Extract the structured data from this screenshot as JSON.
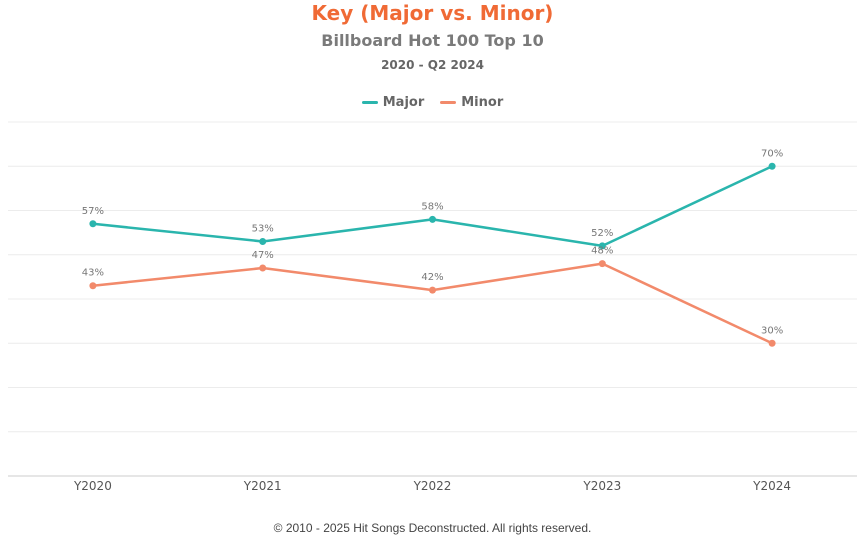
{
  "chart_data": {
    "type": "line",
    "title": "Key (Major vs. Minor)",
    "subtitle": "Billboard Hot 100 Top 10",
    "subtitle2": "2020 - Q2 2024",
    "categories": [
      "Y2020",
      "Y2021",
      "Y2022",
      "Y2023",
      "Y2024"
    ],
    "ylim": [
      0,
      80
    ],
    "grid": true,
    "legend": "top-center",
    "series": [
      {
        "name": "Major",
        "values": [
          57,
          53,
          58,
          52,
          70
        ],
        "labels": [
          "57%",
          "53%",
          "58%",
          "52%",
          "70%"
        ],
        "color": "#2ab5ad"
      },
      {
        "name": "Minor",
        "values": [
          43,
          47,
          42,
          48,
          30
        ],
        "labels": [
          "43%",
          "47%",
          "42%",
          "48%",
          "30%"
        ],
        "color": "#f28a6b"
      }
    ],
    "colors": {
      "title": "#f06a35"
    }
  },
  "footer": "© 2010 - 2025 Hit Songs Deconstructed. All rights reserved."
}
